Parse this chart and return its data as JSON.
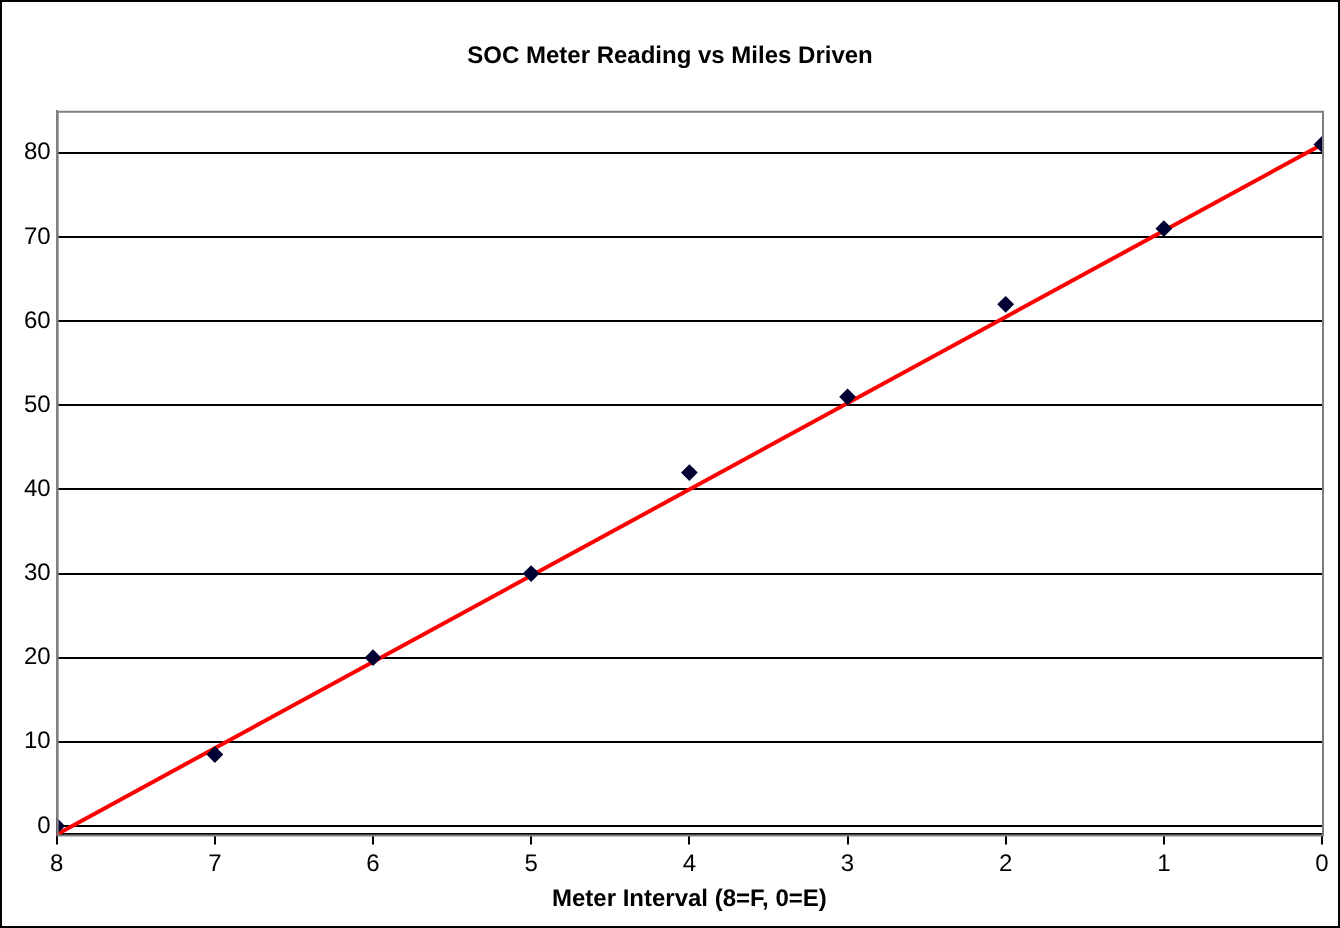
{
  "chart_data": {
    "type": "scatter",
    "title": "SOC Meter Reading vs Miles Driven",
    "xlabel": "Meter Interval (8=F, 0=E)",
    "x": [
      8,
      7,
      6,
      5,
      4,
      3,
      2,
      1,
      0
    ],
    "series": [
      {
        "color": "#000033",
        "marker": "diamond",
        "values": [
          0,
          8.5,
          20,
          30,
          42,
          51,
          62,
          71,
          81
        ]
      },
      {
        "type": "line",
        "color": "#ff0000",
        "marker": "none",
        "line_style": "solid",
        "x": [
          8,
          0
        ],
        "values": [
          -1,
          81
        ]
      }
    ],
    "xlim": [
      8,
      0
    ],
    "xticks": [
      8,
      7,
      6,
      5,
      4,
      3,
      2,
      1,
      0
    ],
    "ylim": [
      -1,
      85
    ],
    "yticks": [
      0,
      10,
      20,
      30,
      40,
      50,
      60,
      70,
      80
    ],
    "grid": "y",
    "legend": false
  }
}
